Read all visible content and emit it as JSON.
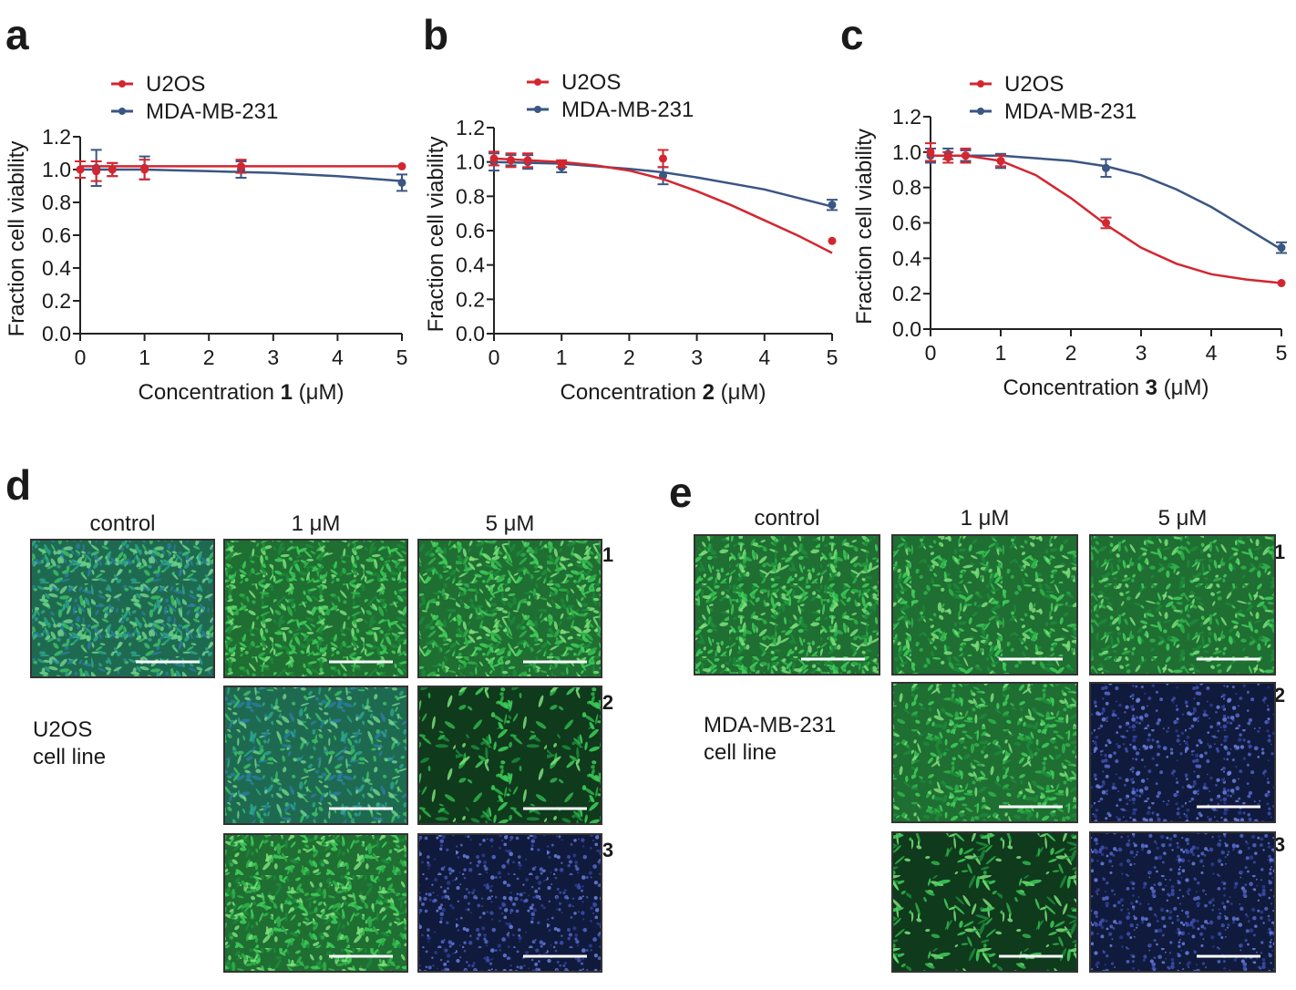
{
  "colors": {
    "u2os": "#d4262f",
    "mda": "#3a5683"
  },
  "chart_data": [
    {
      "panel": "a",
      "type": "line",
      "xlabel": "Concentration ",
      "xlabel_compound": "1",
      "xlabel_unit": " (μM)",
      "ylabel": "Fraction cell viability",
      "xlim": [
        0,
        5
      ],
      "ylim": [
        0,
        1.2
      ],
      "xticks": [
        "0",
        "1",
        "2",
        "3",
        "4",
        "5"
      ],
      "yticks": [
        "0.0",
        "0.2",
        "0.4",
        "0.6",
        "0.8",
        "1.0",
        "1.2"
      ],
      "legend": [
        "U2OS",
        "MDA-MB-231"
      ],
      "series": [
        {
          "name": "U2OS",
          "color": "#d4262f",
          "x": [
            0,
            0.25,
            0.5,
            1,
            2.5,
            5
          ],
          "y": [
            1.0,
            0.99,
            1.0,
            1.0,
            1.02,
            1.02
          ],
          "err": [
            0.05,
            0.06,
            0.04,
            0.06,
            0.04,
            0.0
          ],
          "fit_x": [
            0,
            1,
            2,
            3,
            4,
            5
          ],
          "fit_y": [
            1.02,
            1.02,
            1.02,
            1.02,
            1.02,
            1.02
          ]
        },
        {
          "name": "MDA-MB-231",
          "color": "#3a5683",
          "x": [
            0,
            0.25,
            0.5,
            1,
            2.5,
            5
          ],
          "y": [
            1.0,
            1.01,
            1.0,
            1.01,
            1.0,
            0.92
          ],
          "err": [
            0.05,
            0.11,
            0.04,
            0.07,
            0.05,
            0.05
          ],
          "fit_x": [
            0,
            1,
            2,
            2.5,
            3,
            4,
            5
          ],
          "fit_y": [
            1.0,
            1.0,
            0.99,
            0.985,
            0.98,
            0.96,
            0.93
          ]
        }
      ]
    },
    {
      "panel": "b",
      "type": "line",
      "xlabel": "Concentration ",
      "xlabel_compound": "2",
      "xlabel_unit": " (μM)",
      "ylabel": "Fraction cell viability",
      "xlim": [
        0,
        5
      ],
      "ylim": [
        0,
        1.2
      ],
      "xticks": [
        "0",
        "1",
        "2",
        "3",
        "4",
        "5"
      ],
      "yticks": [
        "0.0",
        "0.2",
        "0.4",
        "0.6",
        "0.8",
        "1.0",
        "1.2"
      ],
      "legend": [
        "U2OS",
        "MDA-MB-231"
      ],
      "series": [
        {
          "name": "U2OS",
          "color": "#d4262f",
          "x": [
            0,
            0.25,
            0.5,
            1,
            2.5,
            5
          ],
          "y": [
            1.02,
            1.01,
            1.01,
            0.99,
            1.02,
            0.54
          ],
          "err": [
            0.04,
            0.04,
            0.04,
            0.02,
            0.05,
            0.0
          ],
          "fit_x": [
            0,
            1,
            1.5,
            2,
            2.5,
            3,
            3.5,
            4,
            4.5,
            5
          ],
          "fit_y": [
            1.02,
            1.0,
            0.98,
            0.95,
            0.9,
            0.83,
            0.75,
            0.66,
            0.57,
            0.47
          ]
        },
        {
          "name": "MDA-MB-231",
          "color": "#3a5683",
          "x": [
            0,
            0.25,
            0.5,
            1,
            2.5,
            5
          ],
          "y": [
            1.0,
            1.01,
            1.0,
            0.97,
            0.92,
            0.75
          ],
          "err": [
            0.05,
            0.03,
            0.04,
            0.03,
            0.05,
            0.03
          ],
          "fit_x": [
            0,
            1,
            2,
            2.5,
            3,
            4,
            5
          ],
          "fit_y": [
            1.0,
            0.99,
            0.96,
            0.94,
            0.91,
            0.84,
            0.74
          ]
        }
      ]
    },
    {
      "panel": "c",
      "type": "line",
      "xlabel": "Concentration ",
      "xlabel_compound": "3",
      "xlabel_unit": " (μM)",
      "ylabel": "Fraction cell viability",
      "xlim": [
        0,
        5
      ],
      "ylim": [
        0,
        1.2
      ],
      "xticks": [
        "0",
        "1",
        "2",
        "3",
        "4",
        "5"
      ],
      "yticks": [
        "0.0",
        "0.2",
        "0.4",
        "0.6",
        "0.8",
        "1.0",
        "1.2"
      ],
      "legend": [
        "U2OS",
        "MDA-MB-231"
      ],
      "series": [
        {
          "name": "U2OS",
          "color": "#d4262f",
          "x": [
            0,
            0.25,
            0.5,
            1,
            2.5,
            5
          ],
          "y": [
            1.0,
            0.97,
            0.98,
            0.95,
            0.6,
            0.26
          ],
          "err": [
            0.05,
            0.03,
            0.04,
            0.03,
            0.03,
            0.0
          ],
          "fit_x": [
            0,
            0.5,
            1,
            1.5,
            2,
            2.5,
            3,
            3.5,
            4,
            4.5,
            5
          ],
          "fit_y": [
            0.98,
            0.98,
            0.95,
            0.87,
            0.74,
            0.59,
            0.46,
            0.37,
            0.31,
            0.28,
            0.26
          ]
        },
        {
          "name": "MDA-MB-231",
          "color": "#3a5683",
          "x": [
            0,
            0.25,
            0.5,
            1,
            2.5,
            5
          ],
          "y": [
            0.98,
            0.99,
            0.98,
            0.95,
            0.91,
            0.46
          ],
          "err": [
            0.04,
            0.03,
            0.03,
            0.04,
            0.05,
            0.03
          ],
          "fit_x": [
            0,
            1,
            2,
            2.5,
            3,
            3.5,
            4,
            4.5,
            5
          ],
          "fit_y": [
            0.98,
            0.98,
            0.95,
            0.92,
            0.87,
            0.79,
            0.69,
            0.57,
            0.45
          ]
        }
      ]
    }
  ],
  "micrographs": [
    {
      "panel": "d",
      "cell_line": [
        "U2OS",
        "cell line"
      ],
      "columns": [
        "control",
        "1 μM",
        "5 μM"
      ],
      "rows": [
        "1",
        "2",
        "3"
      ],
      "tiles": [
        {
          "row": "1",
          "col": "control",
          "tone": "green-blue",
          "density": "confluent"
        },
        {
          "row": "1",
          "col": "1 μM",
          "tone": "green",
          "density": "confluent"
        },
        {
          "row": "1",
          "col": "5 μM",
          "tone": "green",
          "density": "confluent"
        },
        {
          "row": "2",
          "col": "1 μM",
          "tone": "green-blue",
          "density": "dense"
        },
        {
          "row": "2",
          "col": "5 μM",
          "tone": "green",
          "density": "sparse"
        },
        {
          "row": "3",
          "col": "1 μM",
          "tone": "green",
          "density": "confluent"
        },
        {
          "row": "3",
          "col": "5 μM",
          "tone": "blue",
          "density": "dead"
        }
      ]
    },
    {
      "panel": "e",
      "cell_line": [
        "MDA-MB-231",
        "cell line"
      ],
      "columns": [
        "control",
        "1 μM",
        "5 μM"
      ],
      "rows": [
        "1",
        "2",
        "3"
      ],
      "tiles": [
        {
          "row": "1",
          "col": "control",
          "tone": "green",
          "density": "confluent"
        },
        {
          "row": "1",
          "col": "1 μM",
          "tone": "green",
          "density": "dense"
        },
        {
          "row": "1",
          "col": "5 μM",
          "tone": "green",
          "density": "dense"
        },
        {
          "row": "2",
          "col": "1 μM",
          "tone": "green",
          "density": "dense"
        },
        {
          "row": "2",
          "col": "5 μM",
          "tone": "blue",
          "density": "dead"
        },
        {
          "row": "3",
          "col": "1 μM",
          "tone": "green",
          "density": "sparse"
        },
        {
          "row": "3",
          "col": "5 μM",
          "tone": "blue",
          "density": "dead"
        }
      ]
    }
  ]
}
